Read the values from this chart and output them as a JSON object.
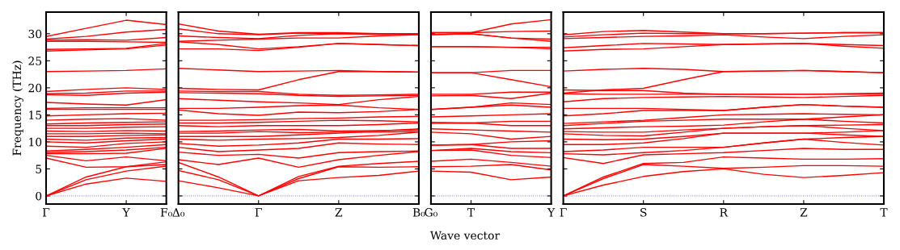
{
  "chart_data": [
    {
      "type": "line",
      "ylabel": "Frequency (THz)",
      "categories": [
        "Γ",
        null,
        "Y",
        "F₀"
      ],
      "ylim": [
        -1.5,
        34
      ],
      "yticks": [
        0,
        5,
        10,
        15,
        20,
        25,
        30
      ],
      "ref_lines": [
        {
          "axis": "y",
          "value": 0,
          "color": "#6666ff",
          "line_style": "dotted"
        }
      ],
      "series": [
        {
          "color": "#ff0000",
          "values": [
            0,
            2.2,
            3.3,
            2.7
          ]
        },
        {
          "color": "#ff0000",
          "values": [
            0,
            3.0,
            4.6,
            5.5
          ]
        },
        {
          "color": "#ff0000",
          "values": [
            0,
            3.5,
            5.4,
            5.8
          ]
        },
        {
          "color": "#ff0000",
          "values": [
            7.0,
            5.3,
            5.4,
            6.3
          ]
        },
        {
          "color": "#ff0000",
          "values": [
            7.5,
            6.5,
            7.2,
            6.5
          ]
        },
        {
          "color": "#ff0000",
          "values": [
            7.8,
            7.8,
            7.9,
            8.8
          ]
        },
        {
          "color": "#ff0000",
          "values": [
            8.0,
            8.2,
            8.5,
            9.0
          ]
        },
        {
          "color": "#ff0000",
          "values": [
            8.3,
            8.6,
            9.0,
            9.5
          ]
        },
        {
          "color": "#ff0000",
          "values": [
            9.2,
            9.0,
            9.7,
            10.0
          ]
        },
        {
          "color": "#ff0000",
          "values": [
            10.0,
            9.8,
            10.2,
            10.5
          ]
        },
        {
          "color": "#ff0000",
          "values": [
            10.5,
            10.3,
            10.7,
            10.8
          ]
        },
        {
          "color": "#ff0000",
          "values": [
            11.0,
            11.0,
            11.2,
            11.3
          ]
        },
        {
          "color": "#ff0000",
          "values": [
            11.5,
            11.5,
            11.6,
            11.5
          ]
        },
        {
          "color": "#ff0000",
          "values": [
            12.0,
            11.9,
            12.1,
            12.0
          ]
        },
        {
          "color": "#ff0000",
          "values": [
            12.5,
            12.5,
            12.7,
            12.8
          ]
        },
        {
          "color": "#ff0000",
          "values": [
            13.0,
            13.0,
            13.2,
            13.3
          ]
        },
        {
          "color": "#ff0000",
          "values": [
            13.3,
            13.5,
            13.6,
            13.7
          ]
        },
        {
          "color": "#ff0000",
          "values": [
            14.0,
            14.2,
            14.3,
            14.0
          ]
        },
        {
          "color": "#ff0000",
          "values": [
            14.8,
            15.0,
            15.2,
            15.3
          ]
        },
        {
          "color": "#ff0000",
          "values": [
            16.0,
            16.0,
            16.0,
            16.0
          ]
        },
        {
          "color": "#ff0000",
          "values": [
            16.2,
            16.3,
            16.3,
            16.3
          ]
        },
        {
          "color": "#ff0000",
          "values": [
            17.3,
            17.0,
            16.8,
            17.8
          ]
        },
        {
          "color": "#ff0000",
          "values": [
            18.7,
            18.6,
            19.0,
            19.2
          ]
        },
        {
          "color": "#ff0000",
          "values": [
            18.9,
            19.0,
            19.4,
            19.4
          ]
        },
        {
          "color": "#ff0000",
          "values": [
            19.3,
            19.7,
            20.0,
            19.7
          ]
        },
        {
          "color": "#ff0000",
          "values": [
            23.0,
            23.1,
            23.2,
            23.5
          ]
        },
        {
          "color": "#ff0000",
          "values": [
            26.8,
            27.0,
            27.2,
            27.9
          ]
        },
        {
          "color": "#ff0000",
          "values": [
            27.1,
            27.2,
            27.3,
            28.2
          ]
        },
        {
          "color": "#ff0000",
          "values": [
            28.6,
            28.6,
            28.5,
            28.4
          ]
        },
        {
          "color": "#ff0000",
          "values": [
            28.8,
            28.9,
            28.8,
            29.3
          ]
        },
        {
          "color": "#ff0000",
          "values": [
            29.0,
            29.5,
            30.3,
            30.8
          ]
        },
        {
          "color": "#ff0000",
          "values": [
            29.5,
            31.0,
            32.5,
            31.7
          ]
        }
      ]
    },
    {
      "type": "line",
      "tick_labels": "x",
      "categories": [
        "Δ₀",
        null,
        "Γ",
        null,
        "Z",
        null,
        "B₀"
      ],
      "ylim": [
        -1.5,
        34
      ],
      "yticks": [
        0,
        5,
        10,
        15,
        20,
        25,
        30
      ],
      "ref_lines": [
        {
          "axis": "y",
          "value": 0,
          "color": "#6666ff",
          "line_style": "dotted"
        }
      ],
      "series": [
        {
          "color": "#ff0000",
          "values": [
            2.8,
            1.5,
            0,
            2.8,
            3.4,
            3.8,
            4.6
          ]
        },
        {
          "color": "#ff0000",
          "values": [
            4.7,
            3.0,
            0,
            3.2,
            5.4,
            5.3,
            5.4
          ]
        },
        {
          "color": "#ff0000",
          "values": [
            6.2,
            3.5,
            0,
            3.6,
            5.5,
            6.0,
            6.4
          ]
        },
        {
          "color": "#ff0000",
          "values": [
            6.7,
            5.8,
            7.0,
            5.3,
            6.7,
            7.5,
            8.2
          ]
        },
        {
          "color": "#ff0000",
          "values": [
            8.1,
            7.5,
            7.7,
            7.0,
            8.0,
            8.2,
            8.3
          ]
        },
        {
          "color": "#ff0000",
          "values": [
            9.0,
            8.2,
            8.5,
            8.8,
            9.8,
            9.6,
            9.5
          ]
        },
        {
          "color": "#ff0000",
          "values": [
            9.7,
            9.2,
            9.4,
            9.8,
            10.5,
            10.5,
            10.6
          ]
        },
        {
          "color": "#ff0000",
          "values": [
            10.5,
            10.3,
            10.5,
            10.6,
            10.8,
            11.2,
            11.8
          ]
        },
        {
          "color": "#ff0000",
          "values": [
            11.0,
            11.0,
            11.0,
            11.3,
            11.6,
            12.0,
            12.4
          ]
        },
        {
          "color": "#ff0000",
          "values": [
            11.6,
            11.6,
            11.9,
            11.7,
            11.8,
            11.8,
            11.9
          ]
        },
        {
          "color": "#ff0000",
          "values": [
            11.9,
            12.0,
            12.2,
            12.3,
            12.0,
            12.1,
            12.2
          ]
        },
        {
          "color": "#ff0000",
          "values": [
            13.0,
            12.8,
            13.0,
            13.0,
            13.0,
            13.2,
            13.5
          ]
        },
        {
          "color": "#ff0000",
          "values": [
            13.5,
            13.5,
            13.6,
            13.8,
            14.0,
            13.9,
            13.7
          ]
        },
        {
          "color": "#ff0000",
          "values": [
            14.0,
            14.0,
            14.1,
            14.3,
            14.4,
            14.6,
            14.7
          ]
        },
        {
          "color": "#ff0000",
          "values": [
            15.9,
            15.2,
            14.9,
            15.5,
            15.4,
            15.6,
            16.0
          ]
        },
        {
          "color": "#ff0000",
          "values": [
            16.2,
            16.2,
            16.4,
            16.7,
            16.8,
            16.3,
            16.0
          ]
        },
        {
          "color": "#ff0000",
          "values": [
            18.0,
            17.7,
            17.4,
            17.2,
            16.9,
            17.8,
            18.4
          ]
        },
        {
          "color": "#ff0000",
          "values": [
            19.1,
            19.0,
            18.9,
            18.6,
            18.4,
            18.5,
            18.6
          ]
        },
        {
          "color": "#ff0000",
          "values": [
            19.4,
            19.3,
            19.3,
            18.8,
            18.6,
            18.7,
            18.8
          ]
        },
        {
          "color": "#ff0000",
          "values": [
            19.9,
            19.7,
            19.6,
            21.5,
            23.0,
            23.0,
            22.9
          ]
        },
        {
          "color": "#ff0000",
          "values": [
            23.6,
            23.3,
            23.0,
            23.1,
            23.2,
            23.0,
            22.9
          ]
        },
        {
          "color": "#ff0000",
          "values": [
            27.2,
            27.2,
            26.9,
            27.5,
            28.2,
            28.0,
            27.8
          ]
        },
        {
          "color": "#ff0000",
          "values": [
            28.5,
            28.0,
            27.2,
            27.6,
            28.2,
            28.0,
            27.8
          ]
        },
        {
          "color": "#ff0000",
          "values": [
            28.6,
            28.8,
            29.0,
            29.2,
            29.2,
            29.6,
            29.8
          ]
        },
        {
          "color": "#ff0000",
          "values": [
            29.6,
            29.3,
            29.1,
            29.7,
            30.0,
            29.9,
            29.9
          ]
        },
        {
          "color": "#ff0000",
          "values": [
            30.9,
            30.0,
            29.8,
            30.1,
            30.0,
            30.0,
            30.0
          ]
        },
        {
          "color": "#ff0000",
          "values": [
            31.8,
            30.5,
            29.9,
            30.2,
            30.2,
            30.0,
            30.0
          ]
        }
      ]
    },
    {
      "type": "line",
      "tick_labels": "x",
      "xlabel": "Wave vector",
      "categories": [
        "G₀",
        "T",
        null,
        "Y"
      ],
      "ylim": [
        -1.5,
        34
      ],
      "yticks": [
        0,
        5,
        10,
        15,
        20,
        25,
        30
      ],
      "ref_lines": [
        {
          "axis": "y",
          "value": 0,
          "color": "#6666ff",
          "line_style": "dotted"
        }
      ],
      "series": [
        {
          "color": "#ff0000",
          "values": [
            4.6,
            4.4,
            3.0,
            3.5
          ]
        },
        {
          "color": "#ff0000",
          "values": [
            5.4,
            5.5,
            5.8,
            4.8
          ]
        },
        {
          "color": "#ff0000",
          "values": [
            6.4,
            6.8,
            6.2,
            5.5
          ]
        },
        {
          "color": "#ff0000",
          "values": [
            8.4,
            8.5,
            7.5,
            7.1
          ]
        },
        {
          "color": "#ff0000",
          "values": [
            8.4,
            8.8,
            8.2,
            8.0
          ]
        },
        {
          "color": "#ff0000",
          "values": [
            9.4,
            9.5,
            8.8,
            8.8
          ]
        },
        {
          "color": "#ff0000",
          "values": [
            9.4,
            9.5,
            10.0,
            10.2
          ]
        },
        {
          "color": "#ff0000",
          "values": [
            11.8,
            11.5,
            10.5,
            11.0
          ]
        },
        {
          "color": "#ff0000",
          "values": [
            12.4,
            12.2,
            12.0,
            11.8
          ]
        },
        {
          "color": "#ff0000",
          "values": [
            13.4,
            13.5,
            13.0,
            13.0
          ]
        },
        {
          "color": "#ff0000",
          "values": [
            13.6,
            13.5,
            13.8,
            13.8
          ]
        },
        {
          "color": "#ff0000",
          "values": [
            14.6,
            14.8,
            15.0,
            15.2
          ]
        },
        {
          "color": "#ff0000",
          "values": [
            16.0,
            16.4,
            16.8,
            16.4
          ]
        },
        {
          "color": "#ff0000",
          "values": [
            16.0,
            16.4,
            17.2,
            16.9
          ]
        },
        {
          "color": "#ff0000",
          "values": [
            18.5,
            18.6,
            18.0,
            19.0
          ]
        },
        {
          "color": "#ff0000",
          "values": [
            18.8,
            18.8,
            19.2,
            19.2
          ]
        },
        {
          "color": "#ff0000",
          "values": [
            22.8,
            22.8,
            21.5,
            20.2
          ]
        },
        {
          "color": "#ff0000",
          "values": [
            22.8,
            22.8,
            23.2,
            23.2
          ]
        },
        {
          "color": "#ff0000",
          "values": [
            27.6,
            27.6,
            27.5,
            27.2
          ]
        },
        {
          "color": "#ff0000",
          "values": [
            27.6,
            27.6,
            27.5,
            27.5
          ]
        },
        {
          "color": "#ff0000",
          "values": [
            29.8,
            30.0,
            29.2,
            28.6
          ]
        },
        {
          "color": "#ff0000",
          "values": [
            29.8,
            30.0,
            29.2,
            29.0
          ]
        },
        {
          "color": "#ff0000",
          "values": [
            30.2,
            30.2,
            30.4,
            30.5
          ]
        },
        {
          "color": "#ff0000",
          "values": [
            30.2,
            30.2,
            31.8,
            32.6
          ]
        }
      ]
    },
    {
      "type": "line",
      "tick_labels": "x",
      "categories": [
        "Γ",
        null,
        "S",
        null,
        "R",
        null,
        "Z",
        null,
        "T"
      ],
      "ylim": [
        -1.5,
        34
      ],
      "yticks": [
        0,
        5,
        10,
        15,
        20,
        25,
        30
      ],
      "ref_lines": [
        {
          "axis": "y",
          "value": 0,
          "color": "#6666ff",
          "line_style": "dotted"
        }
      ],
      "series": [
        {
          "color": "#ff0000",
          "values": [
            0,
            2.0,
            3.6,
            4.5,
            5.0,
            4.0,
            3.4,
            3.8,
            4.3
          ]
        },
        {
          "color": "#ff0000",
          "values": [
            0,
            3.2,
            5.8,
            5.5,
            5.1,
            5.3,
            5.6,
            5.6,
            5.5
          ]
        },
        {
          "color": "#ff0000",
          "values": [
            0,
            3.5,
            6.0,
            6.2,
            7.2,
            7.0,
            6.8,
            6.8,
            6.9
          ]
        },
        {
          "color": "#ff0000",
          "values": [
            7.1,
            6.0,
            7.6,
            7.8,
            8.0,
            8.4,
            8.8,
            8.6,
            8.6
          ]
        },
        {
          "color": "#ff0000",
          "values": [
            7.8,
            7.6,
            8.0,
            8.4,
            9.0,
            9.8,
            10.5,
            9.9,
            9.4
          ]
        },
        {
          "color": "#ff0000",
          "values": [
            8.2,
            8.5,
            9.0,
            9.0,
            9.0,
            9.8,
            10.5,
            10.8,
            11.0
          ]
        },
        {
          "color": "#ff0000",
          "values": [
            9.5,
            9.5,
            9.8,
            10.6,
            11.6,
            11.6,
            11.6,
            11.3,
            11.0
          ]
        },
        {
          "color": "#ff0000",
          "values": [
            10.5,
            10.4,
            10.5,
            11.0,
            11.6,
            11.6,
            11.6,
            11.8,
            12.1
          ]
        },
        {
          "color": "#ff0000",
          "values": [
            11.5,
            11.2,
            11.1,
            11.8,
            12.5,
            12.8,
            13.0,
            12.5,
            12.1
          ]
        },
        {
          "color": "#ff0000",
          "values": [
            11.9,
            11.8,
            11.8,
            12.2,
            12.5,
            12.8,
            13.0,
            13.1,
            13.2
          ]
        },
        {
          "color": "#ff0000",
          "values": [
            12.4,
            12.6,
            12.8,
            12.9,
            13.1,
            13.7,
            14.2,
            13.8,
            13.5
          ]
        },
        {
          "color": "#ff0000",
          "values": [
            13.0,
            13.4,
            13.8,
            14.0,
            14.2,
            14.2,
            14.2,
            14.6,
            15.0
          ]
        },
        {
          "color": "#ff0000",
          "values": [
            13.4,
            13.7,
            14.0,
            14.5,
            15.0,
            15.1,
            15.2,
            15.1,
            15.0
          ]
        },
        {
          "color": "#ff0000",
          "values": [
            14.8,
            15.2,
            15.8,
            15.8,
            15.8,
            16.4,
            16.9,
            16.6,
            16.4
          ]
        },
        {
          "color": "#ff0000",
          "values": [
            16.2,
            16.2,
            16.2,
            16.0,
            15.8,
            16.4,
            16.9,
            16.6,
            16.4
          ]
        },
        {
          "color": "#ff0000",
          "values": [
            17.4,
            18.0,
            18.2,
            18.3,
            18.4,
            18.3,
            18.2,
            18.4,
            18.6
          ]
        },
        {
          "color": "#ff0000",
          "values": [
            18.9,
            18.8,
            18.8,
            18.8,
            18.8,
            18.8,
            18.8,
            18.8,
            18.8
          ]
        },
        {
          "color": "#ff0000",
          "values": [
            19.6,
            19.5,
            19.5,
            19.0,
            18.8,
            18.8,
            18.8,
            18.9,
            19.0
          ]
        },
        {
          "color": "#ff0000",
          "values": [
            19.0,
            19.6,
            19.9,
            21.5,
            23.0,
            23.1,
            23.2,
            23.0,
            22.8
          ]
        },
        {
          "color": "#ff0000",
          "values": [
            23.1,
            23.4,
            23.6,
            23.4,
            23.0,
            23.1,
            23.2,
            23.0,
            22.8
          ]
        },
        {
          "color": "#ff0000",
          "values": [
            26.8,
            27.1,
            27.2,
            27.6,
            28.0,
            28.1,
            28.2,
            27.7,
            27.3
          ]
        },
        {
          "color": "#ff0000",
          "values": [
            27.4,
            27.8,
            28.2,
            28.1,
            28.0,
            28.1,
            28.2,
            28.0,
            27.8
          ]
        },
        {
          "color": "#ff0000",
          "values": [
            29.1,
            29.3,
            29.5,
            29.6,
            29.8,
            29.4,
            29.1,
            29.5,
            29.8
          ]
        },
        {
          "color": "#ff0000",
          "values": [
            29.4,
            29.8,
            30.1,
            30.0,
            30.0,
            30.0,
            30.1,
            30.2,
            30.2
          ]
        },
        {
          "color": "#ff0000",
          "values": [
            29.8,
            30.4,
            30.6,
            30.3,
            30.0,
            30.0,
            30.1,
            30.2,
            30.2
          ]
        }
      ]
    }
  ]
}
